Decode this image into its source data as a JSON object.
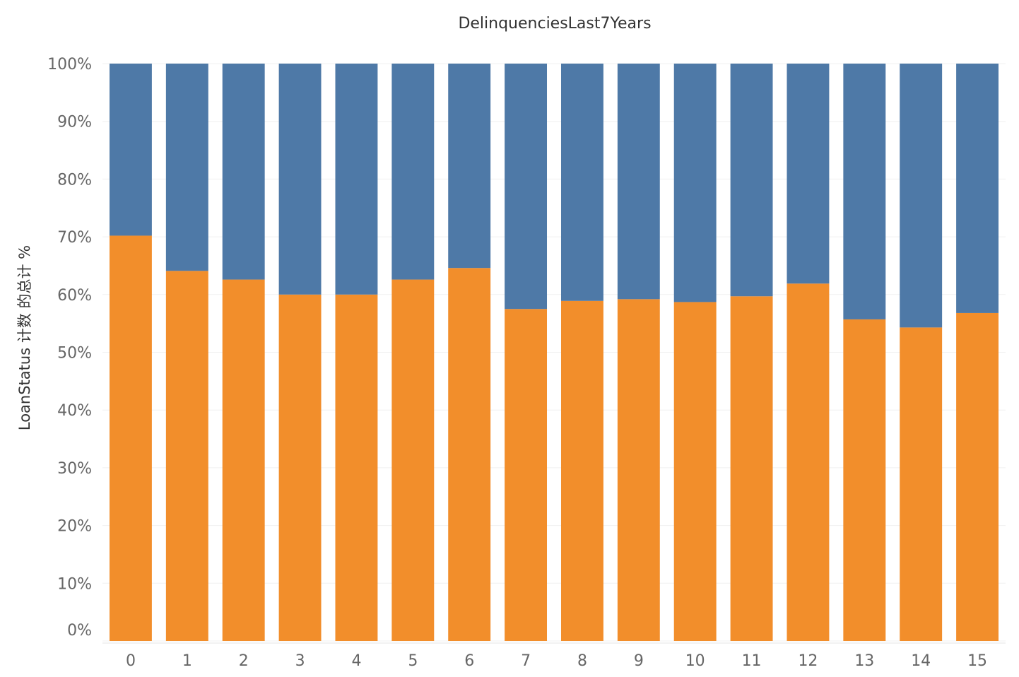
{
  "chart_data": {
    "type": "bar",
    "stacked": true,
    "title": "DelinquenciesLast7Years",
    "xlabel": "",
    "ylabel": "LoanStatus 计数 的总计 %",
    "ylim": [
      0,
      100
    ],
    "y_ticks": [
      "0%",
      "10%",
      "20%",
      "30%",
      "40%",
      "50%",
      "60%",
      "70%",
      "80%",
      "90%",
      "100%"
    ],
    "categories": [
      "0",
      "1",
      "2",
      "3",
      "4",
      "5",
      "6",
      "7",
      "8",
      "9",
      "10",
      "11",
      "12",
      "13",
      "14",
      "15"
    ],
    "series": [
      {
        "color": "#f28e2b",
        "values": [
          70.2,
          64.1,
          62.6,
          60.0,
          60.0,
          62.6,
          64.6,
          57.5,
          58.9,
          59.2,
          58.7,
          59.7,
          61.9,
          55.7,
          54.3,
          56.8
        ]
      },
      {
        "color": "#4e79a7",
        "values": [
          29.8,
          35.9,
          37.4,
          40.0,
          40.0,
          37.4,
          35.4,
          42.5,
          41.1,
          40.8,
          41.3,
          40.3,
          38.1,
          44.3,
          45.7,
          43.2
        ]
      }
    ],
    "grid": true,
    "legend": "none"
  }
}
